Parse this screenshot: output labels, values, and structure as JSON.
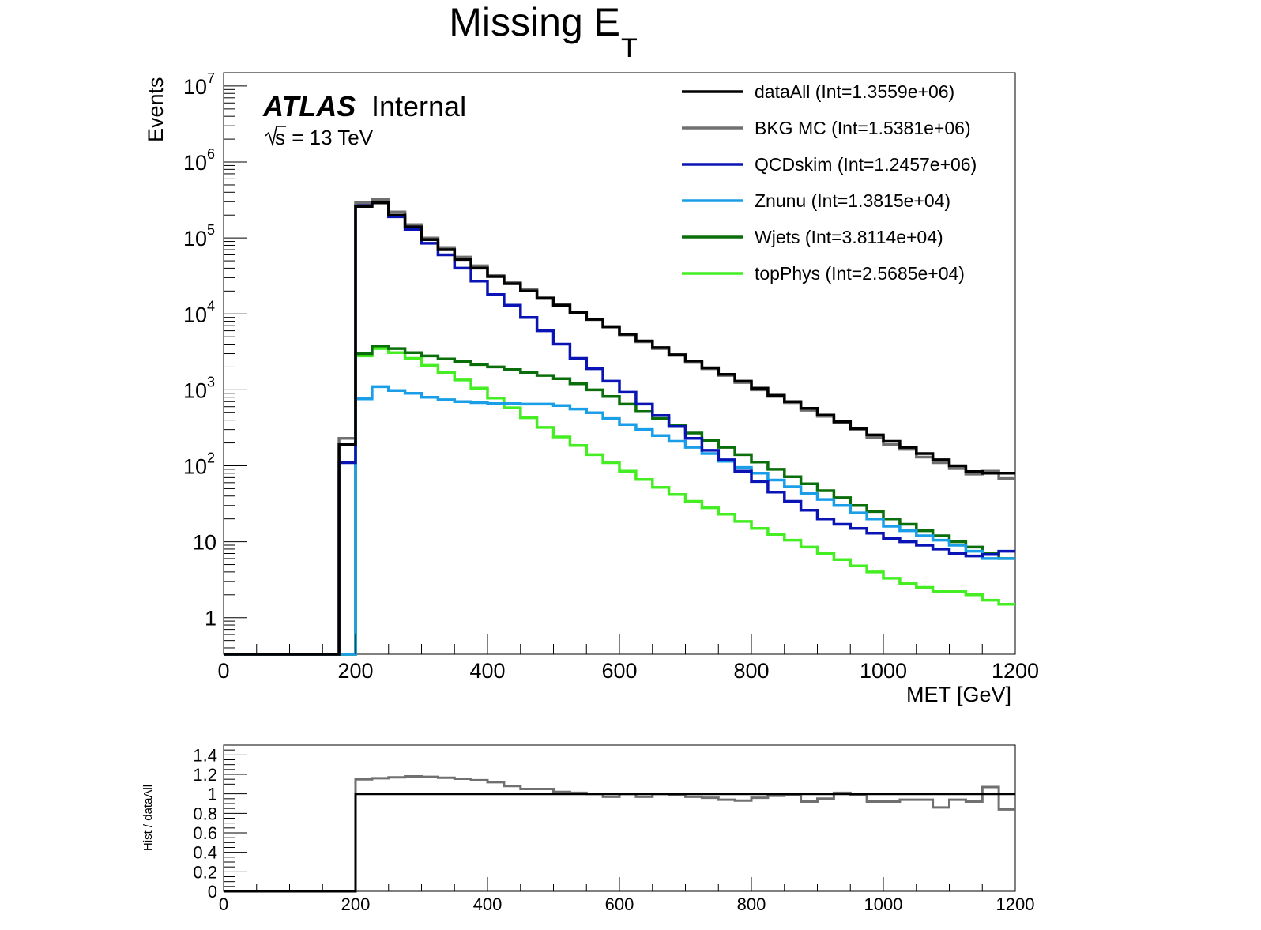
{
  "chart_data": [
    {
      "type": "line",
      "title": "Missing E",
      "title_subscript": "T",
      "xlabel": "MET [GeV]",
      "ylabel": "Events",
      "xlim": [
        0,
        1200
      ],
      "ylim": [
        0.33,
        15000000
      ],
      "yscale": "log",
      "grid": false,
      "legend_position": "top-right",
      "labels": {
        "experiment": "ATLAS",
        "status": "Internal",
        "energy_prefix": "s",
        "energy_suffix": " = 13 TeV"
      },
      "x_ticks": [
        {
          "value": 0,
          "label": "0"
        },
        {
          "value": 200,
          "label": "200"
        },
        {
          "value": 400,
          "label": "400"
        },
        {
          "value": 600,
          "label": "600"
        },
        {
          "value": 800,
          "label": "800"
        },
        {
          "value": 1000,
          "label": "1000"
        },
        {
          "value": 1200,
          "label": "1200"
        }
      ],
      "y_ticks": [
        {
          "value": 1,
          "label": "1",
          "exponent": ""
        },
        {
          "value": 10,
          "label": "10",
          "exponent": ""
        },
        {
          "value": 100,
          "label": "10",
          "exponent": "2"
        },
        {
          "value": 1000,
          "label": "10",
          "exponent": "3"
        },
        {
          "value": 10000,
          "label": "10",
          "exponent": "4"
        },
        {
          "value": 100000,
          "label": "10",
          "exponent": "5"
        },
        {
          "value": 1000000,
          "label": "10",
          "exponent": "6"
        },
        {
          "value": 10000000,
          "label": "10",
          "exponent": "7"
        }
      ],
      "bin_width": 25,
      "x_bins_start": [
        0,
        25,
        50,
        75,
        100,
        125,
        150,
        175,
        200,
        225,
        250,
        275,
        300,
        325,
        350,
        375,
        400,
        425,
        450,
        475,
        500,
        525,
        550,
        575,
        600,
        625,
        650,
        675,
        700,
        725,
        750,
        775,
        800,
        825,
        850,
        875,
        900,
        925,
        950,
        975,
        1000,
        1025,
        1050,
        1075,
        1100,
        1125,
        1150,
        1175
      ],
      "series": [
        {
          "name": "dataAll (Int=1.3559e+06)",
          "color": "#000000",
          "values": [
            0,
            0,
            0,
            0,
            0,
            0,
            0,
            190,
            260000,
            290000,
            200000,
            140000,
            95000,
            70000,
            52000,
            40000,
            31000,
            25000,
            20000,
            16000,
            13000,
            10500,
            8500,
            6800,
            5400,
            4400,
            3600,
            2900,
            2400,
            1950,
            1600,
            1300,
            1050,
            850,
            700,
            570,
            465,
            380,
            310,
            255,
            210,
            175,
            145,
            120,
            100,
            84,
            80,
            80
          ]
        },
        {
          "name": "BKG MC (Int=1.5381e+06)",
          "color": "#707070",
          "values": [
            0,
            0,
            0,
            0,
            0,
            0,
            0,
            230,
            290000,
            320000,
            220000,
            150000,
            100000,
            75000,
            56000,
            43000,
            32000,
            26000,
            21000,
            16500,
            13200,
            10600,
            8400,
            6700,
            5300,
            4300,
            3500,
            2850,
            2300,
            1900,
            1550,
            1250,
            1000,
            820,
            680,
            540,
            450,
            370,
            300,
            235,
            190,
            165,
            130,
            110,
            92,
            78,
            85,
            68
          ]
        },
        {
          "name": "QCDskim (Int=1.2457e+06)",
          "color": "#0a14b4",
          "values": [
            0,
            0,
            0,
            0,
            0,
            0,
            0,
            110,
            270000,
            300000,
            190000,
            130000,
            85000,
            60000,
            40000,
            27000,
            18000,
            13000,
            9000,
            6000,
            4000,
            2600,
            1900,
            1300,
            930,
            650,
            460,
            330,
            230,
            160,
            120,
            85,
            62,
            45,
            34,
            26,
            20,
            17,
            15,
            13,
            11,
            10,
            9,
            8,
            7,
            6.5,
            6.8,
            7.5
          ]
        },
        {
          "name": "Znunu (Int=1.3815e+04)",
          "color": "#1a9ee8",
          "values": [
            0,
            0,
            0,
            0,
            0,
            0,
            0,
            0,
            760,
            1100,
            980,
            900,
            800,
            740,
            700,
            680,
            660,
            660,
            650,
            650,
            620,
            560,
            500,
            420,
            350,
            300,
            250,
            210,
            175,
            145,
            115,
            95,
            80,
            65,
            53,
            43,
            36,
            30,
            24,
            20,
            16,
            14,
            12,
            10.5,
            9,
            7.5,
            6,
            6
          ]
        },
        {
          "name": "Wjets (Int=3.8114e+04)",
          "color": "#0a6e0a",
          "values": [
            0,
            0,
            0,
            0,
            0,
            0,
            0,
            0,
            3000,
            3800,
            3500,
            3100,
            2800,
            2550,
            2350,
            2150,
            2000,
            1850,
            1700,
            1550,
            1400,
            1200,
            1000,
            820,
            650,
            520,
            420,
            340,
            270,
            215,
            175,
            140,
            112,
            90,
            72,
            58,
            47,
            38,
            30,
            25,
            20,
            17,
            14,
            12,
            10,
            8.5,
            7,
            6
          ]
        },
        {
          "name": "topPhys (Int=2.5685e+04)",
          "color": "#44ee22",
          "values": [
            0,
            0,
            0,
            0,
            0,
            0,
            0,
            0,
            2800,
            3500,
            3100,
            2600,
            2100,
            1700,
            1350,
            1050,
            780,
            580,
            430,
            320,
            240,
            185,
            140,
            110,
            85,
            66,
            52,
            42,
            34,
            28,
            23,
            18.5,
            15,
            12.5,
            10.5,
            8.5,
            7,
            5.8,
            4.8,
            4,
            3.3,
            2.8,
            2.5,
            2.2,
            2.2,
            2,
            1.7,
            1.5
          ]
        }
      ]
    },
    {
      "type": "line",
      "ylabel": "Hist / dataAll",
      "xlim": [
        0,
        1200
      ],
      "ylim": [
        0,
        1.5
      ],
      "grid": false,
      "x_ticks": [
        {
          "value": 0,
          "label": "0"
        },
        {
          "value": 200,
          "label": "200"
        },
        {
          "value": 400,
          "label": "400"
        },
        {
          "value": 600,
          "label": "600"
        },
        {
          "value": 800,
          "label": "800"
        },
        {
          "value": 1000,
          "label": "1000"
        },
        {
          "value": 1200,
          "label": "1200"
        }
      ],
      "y_ticks": [
        {
          "value": 0,
          "label": "0"
        },
        {
          "value": 0.2,
          "label": "0.2"
        },
        {
          "value": 0.4,
          "label": "0.4"
        },
        {
          "value": 0.6,
          "label": "0.6"
        },
        {
          "value": 0.8,
          "label": "0.8"
        },
        {
          "value": 1.0,
          "label": "1"
        },
        {
          "value": 1.2,
          "label": "1.2"
        },
        {
          "value": 1.4,
          "label": "1.4"
        }
      ],
      "bin_width": 25,
      "x_bins_start": [
        0,
        25,
        50,
        75,
        100,
        125,
        150,
        175,
        200,
        225,
        250,
        275,
        300,
        325,
        350,
        375,
        400,
        425,
        450,
        475,
        500,
        525,
        550,
        575,
        600,
        625,
        650,
        675,
        700,
        725,
        750,
        775,
        800,
        825,
        850,
        875,
        900,
        925,
        950,
        975,
        1000,
        1025,
        1050,
        1075,
        1100,
        1125,
        1150,
        1175
      ],
      "series": [
        {
          "name": "dataAll",
          "color": "#000000",
          "values": [
            0,
            0,
            0,
            0,
            0,
            0,
            0,
            0,
            1,
            1,
            1,
            1,
            1,
            1,
            1,
            1,
            1,
            1,
            1,
            1,
            1,
            1,
            1,
            1,
            1,
            1,
            1,
            1,
            1,
            1,
            1,
            1,
            1,
            1,
            1,
            1,
            1,
            1,
            1,
            1,
            1,
            1,
            1,
            1,
            1,
            1,
            1,
            1
          ]
        },
        {
          "name": "BKG MC",
          "color": "#707070",
          "values": [
            0,
            0,
            0,
            0,
            0,
            0,
            0,
            0,
            1.15,
            1.16,
            1.17,
            1.18,
            1.175,
            1.165,
            1.155,
            1.14,
            1.12,
            1.08,
            1.05,
            1.05,
            1.02,
            1.01,
            1.0,
            0.97,
            1.0,
            0.97,
            1.0,
            0.99,
            0.97,
            0.96,
            0.94,
            0.93,
            0.96,
            0.98,
            0.99,
            0.92,
            0.95,
            1.01,
            0.99,
            0.92,
            0.92,
            0.94,
            0.94,
            0.86,
            0.94,
            0.92,
            1.07,
            0.84
          ]
        }
      ]
    }
  ]
}
